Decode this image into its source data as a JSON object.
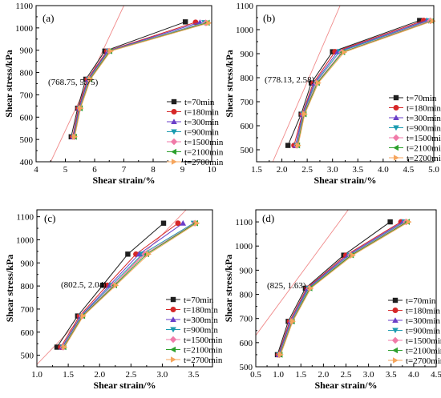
{
  "figure": {
    "series_styles": [
      {
        "name": "t=70min",
        "color": "#1f1f1f",
        "marker": "square"
      },
      {
        "name": "t=180min",
        "color": "#d62728",
        "marker": "circle"
      },
      {
        "name": "t=300min",
        "color": "#6a3fc8",
        "marker": "triangle-up"
      },
      {
        "name": "t=900min",
        "color": "#1a9bb0",
        "marker": "triangle-down"
      },
      {
        "name": "t=1500min",
        "color": "#f07aa8",
        "marker": "diamond"
      },
      {
        "name": "t=2100min",
        "color": "#2ca02c",
        "marker": "triangle-left"
      },
      {
        "name": "t=2700min",
        "color": "#f5a55c",
        "marker": "triangle-right"
      }
    ],
    "reference_line_color": "#f08a8a"
  },
  "chart_data": [
    {
      "type": "line",
      "panel_label": "(a)",
      "xlabel": "Shear strain/%",
      "ylabel": "Shear stress/kPa",
      "xlim": [
        4,
        10
      ],
      "ylim": [
        400,
        1100
      ],
      "xticks": [
        4,
        5,
        6,
        7,
        8,
        9,
        10
      ],
      "yticks": [
        400,
        500,
        600,
        700,
        800,
        900,
        1000,
        1100
      ],
      "annotation": "(768.75, 5.75)",
      "reference_line": [
        [
          4.5,
          400
        ],
        [
          7.0,
          1100
        ]
      ],
      "legend": [
        "t=70min",
        "t=180min",
        "t=300min",
        "t=900min",
        "t=1500min",
        "t=2100min",
        "t=2700min"
      ],
      "series": [
        {
          "name": "t=70min",
          "x": [
            5.2,
            5.42,
            5.7,
            6.35,
            9.1
          ],
          "y": [
            512,
            640,
            770,
            896,
            1027
          ]
        },
        {
          "name": "t=180min",
          "x": [
            5.25,
            5.45,
            5.75,
            6.42,
            9.45
          ],
          "y": [
            512,
            640,
            770,
            896,
            1025
          ]
        },
        {
          "name": "t=300min",
          "x": [
            5.27,
            5.47,
            5.78,
            6.45,
            9.6
          ],
          "y": [
            512,
            640,
            770,
            896,
            1025
          ]
        },
        {
          "name": "t=900min",
          "x": [
            5.29,
            5.49,
            5.8,
            6.48,
            9.75
          ],
          "y": [
            512,
            640,
            770,
            896,
            1024
          ]
        },
        {
          "name": "t=1500min",
          "x": [
            5.3,
            5.5,
            5.82,
            6.5,
            9.8
          ],
          "y": [
            512,
            640,
            770,
            896,
            1023
          ]
        },
        {
          "name": "t=2100min",
          "x": [
            5.31,
            5.51,
            5.84,
            6.52,
            9.85
          ],
          "y": [
            512,
            640,
            770,
            896,
            1023
          ]
        },
        {
          "name": "t=2700min",
          "x": [
            5.32,
            5.52,
            5.86,
            6.55,
            9.9
          ],
          "y": [
            512,
            640,
            770,
            896,
            1022
          ]
        }
      ]
    },
    {
      "type": "line",
      "panel_label": "(b)",
      "xlabel": "Shear strain/%",
      "ylabel": "Shear stress/kPa",
      "xlim": [
        1.5,
        5.0
      ],
      "ylim": [
        450,
        1100
      ],
      "xticks": [
        1.5,
        2.0,
        2.5,
        3.0,
        3.5,
        4.0,
        4.5,
        5.0
      ],
      "yticks": [
        500,
        600,
        700,
        800,
        900,
        1000,
        1100
      ],
      "annotation": "(778.13, 2.58)",
      "reference_line": [
        [
          1.82,
          450
        ],
        [
          3.15,
          1100
        ]
      ],
      "legend": [
        "t=70min",
        "t=180min",
        "t=300min",
        "t=900min",
        "t=1500min",
        "t=2100min",
        "t=2700min"
      ],
      "series": [
        {
          "name": "t=70min",
          "x": [
            2.12,
            2.38,
            2.58,
            3.0,
            4.72
          ],
          "y": [
            518,
            648,
            778,
            908,
            1038
          ]
        },
        {
          "name": "t=180min",
          "x": [
            2.24,
            2.4,
            2.62,
            3.05,
            4.8
          ],
          "y": [
            518,
            648,
            778,
            908,
            1038
          ]
        },
        {
          "name": "t=300min",
          "x": [
            2.27,
            2.41,
            2.64,
            3.1,
            4.86
          ],
          "y": [
            518,
            648,
            778,
            908,
            1038
          ]
        },
        {
          "name": "t=900min",
          "x": [
            2.29,
            2.42,
            2.66,
            3.14,
            4.9
          ],
          "y": [
            518,
            648,
            778,
            908,
            1037
          ]
        },
        {
          "name": "t=1500min",
          "x": [
            2.3,
            2.43,
            2.68,
            3.18,
            4.93
          ],
          "y": [
            518,
            648,
            778,
            906,
            1037
          ]
        },
        {
          "name": "t=2100min",
          "x": [
            2.31,
            2.44,
            2.7,
            3.2,
            4.96
          ],
          "y": [
            518,
            648,
            778,
            906,
            1036
          ]
        },
        {
          "name": "t=2700min",
          "x": [
            2.32,
            2.45,
            2.72,
            3.23,
            4.98
          ],
          "y": [
            518,
            648,
            778,
            906,
            1036
          ]
        }
      ]
    },
    {
      "type": "line",
      "panel_label": "(c)",
      "xlabel": "Shear strain/%",
      "ylabel": "Shear stress/kPa",
      "xlim": [
        1.0,
        3.8
      ],
      "ylim": [
        450,
        1130
      ],
      "xticks": [
        1.0,
        1.5,
        2.0,
        2.5,
        3.0,
        3.5
      ],
      "yticks": [
        500,
        600,
        700,
        800,
        900,
        1000,
        1100
      ],
      "annotation": "(802.5, 2.04)",
      "reference_line": [
        [
          1.0,
          460
        ],
        [
          3.38,
          1130
        ]
      ],
      "legend": [
        "t=70min",
        "t=180min",
        "t=300min",
        "t=900min",
        "t=1500min",
        "t=2100min",
        "t=2700min"
      ],
      "series": [
        {
          "name": "t=70min",
          "x": [
            1.32,
            1.65,
            2.05,
            2.45,
            3.02
          ],
          "y": [
            535,
            670,
            803,
            938,
            1072
          ]
        },
        {
          "name": "t=180min",
          "x": [
            1.38,
            1.68,
            2.12,
            2.58,
            3.25
          ],
          "y": [
            535,
            670,
            803,
            938,
            1072
          ]
        },
        {
          "name": "t=300min",
          "x": [
            1.4,
            1.7,
            2.16,
            2.63,
            3.33
          ],
          "y": [
            535,
            670,
            803,
            938,
            1072
          ]
        },
        {
          "name": "t=900min",
          "x": [
            1.41,
            1.71,
            2.19,
            2.68,
            3.5
          ],
          "y": [
            535,
            670,
            803,
            938,
            1072
          ]
        },
        {
          "name": "t=1500min",
          "x": [
            1.42,
            1.72,
            2.22,
            2.72,
            3.52
          ],
          "y": [
            535,
            670,
            803,
            938,
            1072
          ]
        },
        {
          "name": "t=2100min",
          "x": [
            1.43,
            1.73,
            2.24,
            2.75,
            3.53
          ],
          "y": [
            535,
            670,
            803,
            938,
            1072
          ]
        },
        {
          "name": "t=2700min",
          "x": [
            1.44,
            1.74,
            2.26,
            2.78,
            3.55
          ],
          "y": [
            535,
            670,
            803,
            938,
            1072
          ]
        }
      ]
    },
    {
      "type": "line",
      "panel_label": "(d)",
      "xlabel": "Shear strain/%",
      "ylabel": "Shear stress/kPa",
      "xlim": [
        0.5,
        4.5
      ],
      "ylim": [
        500,
        1150
      ],
      "xticks": [
        0.5,
        1.0,
        1.5,
        2.0,
        2.5,
        3.0,
        3.5,
        4.0,
        4.5
      ],
      "yticks": [
        500,
        600,
        700,
        800,
        900,
        1000,
        1100
      ],
      "annotation": "(825, 1.63)",
      "reference_line": [
        [
          0.5,
          630
        ],
        [
          2.55,
          1150
        ]
      ],
      "legend": [
        "t=70min",
        "t=180min",
        "t=300min",
        "t=900min",
        "t=1500min",
        "t=2100min",
        "t=2700min"
      ],
      "series": [
        {
          "name": "t=70min",
          "x": [
            0.98,
            1.22,
            1.6,
            2.45,
            3.48
          ],
          "y": [
            550,
            688,
            825,
            962,
            1100
          ]
        },
        {
          "name": "t=180min",
          "x": [
            1.0,
            1.25,
            1.63,
            2.5,
            3.72
          ],
          "y": [
            550,
            688,
            825,
            962,
            1100
          ]
        },
        {
          "name": "t=300min",
          "x": [
            1.01,
            1.27,
            1.65,
            2.54,
            3.76
          ],
          "y": [
            550,
            688,
            825,
            962,
            1100
          ]
        },
        {
          "name": "t=900min",
          "x": [
            1.02,
            1.29,
            1.67,
            2.58,
            3.8
          ],
          "y": [
            550,
            688,
            825,
            962,
            1100
          ]
        },
        {
          "name": "t=1500min",
          "x": [
            1.03,
            1.3,
            1.69,
            2.6,
            3.83
          ],
          "y": [
            550,
            688,
            825,
            962,
            1100
          ]
        },
        {
          "name": "t=2100min",
          "x": [
            1.04,
            1.31,
            1.7,
            2.62,
            3.86
          ],
          "y": [
            550,
            688,
            825,
            962,
            1100
          ]
        },
        {
          "name": "t=2700min",
          "x": [
            1.05,
            1.32,
            1.72,
            2.65,
            3.89
          ],
          "y": [
            550,
            688,
            825,
            962,
            1100
          ]
        }
      ]
    }
  ]
}
